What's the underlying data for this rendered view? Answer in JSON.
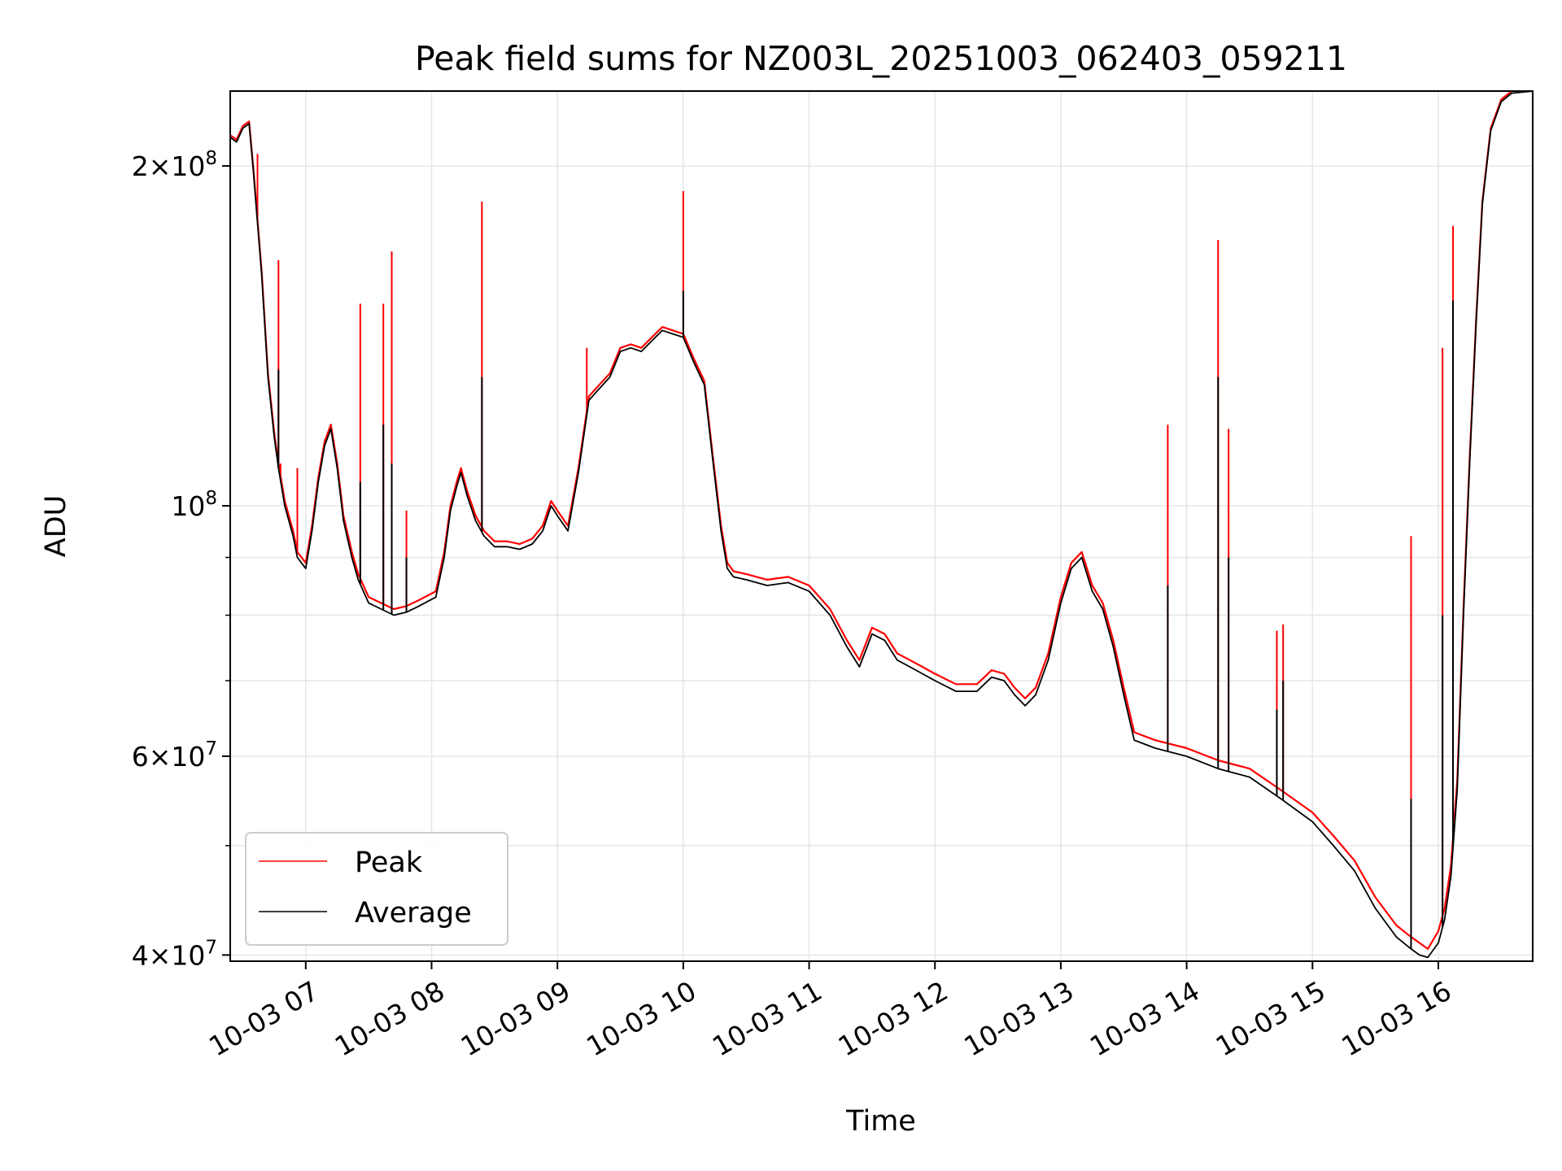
{
  "chart_data": {
    "type": "line",
    "title": "Peak field sums for NZ003L_20251003_062403_059211",
    "xlabel": "Time",
    "ylabel": "ADU",
    "xlim": [
      "2025-10-03T06:24",
      "2025-10-03T16:45"
    ],
    "ylim": [
      39500000,
      233000000
    ],
    "yscale": "log",
    "grid": true,
    "legend_position": "lower-left",
    "x_tick_labels": [
      "10-03 07",
      "10-03 08",
      "10-03 09",
      "10-03 10",
      "10-03 11",
      "10-03 12",
      "10-03 13",
      "10-03 14",
      "10-03 15",
      "10-03 16"
    ],
    "x_tick_values": [
      "2025-10-03T07:00",
      "2025-10-03T08:00",
      "2025-10-03T09:00",
      "2025-10-03T10:00",
      "2025-10-03T11:00",
      "2025-10-03T12:00",
      "2025-10-03T13:00",
      "2025-10-03T14:00",
      "2025-10-03T15:00",
      "2025-10-03T16:00"
    ],
    "y_major_ticks": [
      {
        "value": 40000000,
        "mantissa": "4",
        "exponent": "7"
      },
      {
        "value": 60000000,
        "mantissa": "6",
        "exponent": "7"
      },
      {
        "value": 100000000,
        "mantissa": "",
        "exponent": "8"
      },
      {
        "value": 200000000,
        "mantissa": "2",
        "exponent": "8"
      }
    ],
    "y_minor_grid": [
      50000000,
      70000000,
      80000000,
      90000000
    ],
    "series": [
      {
        "name": "Average",
        "color": "#000000",
        "x": [
          "2025-10-03T06:24",
          "2025-10-03T06:27",
          "2025-10-03T06:30",
          "2025-10-03T06:33",
          "2025-10-03T06:35",
          "2025-10-03T06:39",
          "2025-10-03T06:42",
          "2025-10-03T06:45",
          "2025-10-03T06:47",
          "2025-10-03T06:50",
          "2025-10-03T06:54",
          "2025-10-03T06:56",
          "2025-10-03T07:00",
          "2025-10-03T07:03",
          "2025-10-03T07:06",
          "2025-10-03T07:09",
          "2025-10-03T07:12",
          "2025-10-03T07:15",
          "2025-10-03T07:18",
          "2025-10-03T07:22",
          "2025-10-03T07:25",
          "2025-10-03T07:30",
          "2025-10-03T07:36",
          "2025-10-03T07:42",
          "2025-10-03T07:48",
          "2025-10-03T07:54",
          "2025-10-03T08:02",
          "2025-10-03T08:06",
          "2025-10-03T08:09",
          "2025-10-03T08:12",
          "2025-10-03T08:14",
          "2025-10-03T08:17",
          "2025-10-03T08:21",
          "2025-10-03T08:25",
          "2025-10-03T08:30",
          "2025-10-03T08:36",
          "2025-10-03T08:42",
          "2025-10-03T08:48",
          "2025-10-03T08:53",
          "2025-10-03T08:57",
          "2025-10-03T09:00",
          "2025-10-03T09:05",
          "2025-10-03T09:10",
          "2025-10-03T09:15",
          "2025-10-03T09:20",
          "2025-10-03T09:25",
          "2025-10-03T09:30",
          "2025-10-03T09:35",
          "2025-10-03T09:40",
          "2025-10-03T09:45",
          "2025-10-03T09:50",
          "2025-10-03T09:55",
          "2025-10-03T10:00",
          "2025-10-03T10:05",
          "2025-10-03T10:10",
          "2025-10-03T10:14",
          "2025-10-03T10:18",
          "2025-10-03T10:21",
          "2025-10-03T10:24",
          "2025-10-03T10:30",
          "2025-10-03T10:40",
          "2025-10-03T10:50",
          "2025-10-03T11:00",
          "2025-10-03T11:10",
          "2025-10-03T11:18",
          "2025-10-03T11:24",
          "2025-10-03T11:30",
          "2025-10-03T11:36",
          "2025-10-03T11:42",
          "2025-10-03T11:48",
          "2025-10-03T11:54",
          "2025-10-03T12:00",
          "2025-10-03T12:10",
          "2025-10-03T12:20",
          "2025-10-03T12:27",
          "2025-10-03T12:33",
          "2025-10-03T12:38",
          "2025-10-03T12:43",
          "2025-10-03T12:48",
          "2025-10-03T12:54",
          "2025-10-03T13:00",
          "2025-10-03T13:05",
          "2025-10-03T13:10",
          "2025-10-03T13:15",
          "2025-10-03T13:20",
          "2025-10-03T13:25",
          "2025-10-03T13:30",
          "2025-10-03T13:35",
          "2025-10-03T13:45",
          "2025-10-03T14:00",
          "2025-10-03T14:15",
          "2025-10-03T14:30",
          "2025-10-03T14:45",
          "2025-10-03T15:00",
          "2025-10-03T15:10",
          "2025-10-03T15:20",
          "2025-10-03T15:30",
          "2025-10-03T15:40",
          "2025-10-03T15:47",
          "2025-10-03T15:51",
          "2025-10-03T15:55",
          "2025-10-03T16:00",
          "2025-10-03T16:03",
          "2025-10-03T16:06",
          "2025-10-03T16:09",
          "2025-10-03T16:12",
          "2025-10-03T16:15",
          "2025-10-03T16:18",
          "2025-10-03T16:21",
          "2025-10-03T16:25",
          "2025-10-03T16:30",
          "2025-10-03T16:35",
          "2025-10-03T16:45"
        ],
        "values": [
          212000000,
          210000000,
          216000000,
          218000000,
          198000000,
          160000000,
          130000000,
          115000000,
          108000000,
          100000000,
          94000000,
          90000000,
          88000000,
          95000000,
          105000000,
          113000000,
          117000000,
          108000000,
          97000000,
          90000000,
          86000000,
          82000000,
          81000000,
          80000000,
          80500000,
          81500000,
          83000000,
          90000000,
          99000000,
          104000000,
          107000000,
          102000000,
          97000000,
          94000000,
          92000000,
          92000000,
          91500000,
          92500000,
          95000000,
          100000000,
          98000000,
          95000000,
          107000000,
          124000000,
          127000000,
          130000000,
          137000000,
          138000000,
          137000000,
          140000000,
          143000000,
          142000000,
          141000000,
          134000000,
          128000000,
          110000000,
          95000000,
          88000000,
          86500000,
          86000000,
          85000000,
          85500000,
          84000000,
          80000000,
          75000000,
          72000000,
          77000000,
          76000000,
          73000000,
          72000000,
          71000000,
          70000000,
          68500000,
          68500000,
          70500000,
          70000000,
          68000000,
          66500000,
          68000000,
          73000000,
          82000000,
          88000000,
          90000000,
          84000000,
          81000000,
          75000000,
          68000000,
          62000000,
          61000000,
          60000000,
          58500000,
          57500000,
          55000000,
          52500000,
          50000000,
          47500000,
          44000000,
          41500000,
          40500000,
          40000000,
          39800000,
          41000000,
          43000000,
          47000000,
          56000000,
          80000000,
          110000000,
          145000000,
          185000000,
          215000000,
          228000000,
          232000000,
          233000000
        ],
        "spikes": [
          {
            "x": "2025-10-03T06:47",
            "value": 132000000
          },
          {
            "x": "2025-10-03T07:26",
            "value": 105000000
          },
          {
            "x": "2025-10-03T07:37",
            "value": 118000000
          },
          {
            "x": "2025-10-03T07:41",
            "value": 109000000
          },
          {
            "x": "2025-10-03T07:48",
            "value": 90000000
          },
          {
            "x": "2025-10-03T08:24",
            "value": 130000000
          },
          {
            "x": "2025-10-03T10:00",
            "value": 155000000
          },
          {
            "x": "2025-10-03T13:51",
            "value": 85000000
          },
          {
            "x": "2025-10-03T14:15",
            "value": 130000000
          },
          {
            "x": "2025-10-03T14:20",
            "value": 90000000
          },
          {
            "x": "2025-10-03T14:43",
            "value": 66000000
          },
          {
            "x": "2025-10-03T14:46",
            "value": 70000000
          },
          {
            "x": "2025-10-03T15:47",
            "value": 55000000
          },
          {
            "x": "2025-10-03T16:02",
            "value": 80000000
          },
          {
            "x": "2025-10-03T16:07",
            "value": 152000000
          }
        ]
      },
      {
        "name": "Peak",
        "color": "#ff0000",
        "x": [
          "2025-10-03T06:24",
          "2025-10-03T06:27",
          "2025-10-03T06:30",
          "2025-10-03T06:33",
          "2025-10-03T06:35",
          "2025-10-03T06:39",
          "2025-10-03T06:42",
          "2025-10-03T06:45",
          "2025-10-03T06:47",
          "2025-10-03T06:50",
          "2025-10-03T06:54",
          "2025-10-03T06:56",
          "2025-10-03T07:00",
          "2025-10-03T07:03",
          "2025-10-03T07:06",
          "2025-10-03T07:09",
          "2025-10-03T07:12",
          "2025-10-03T07:15",
          "2025-10-03T07:18",
          "2025-10-03T07:22",
          "2025-10-03T07:25",
          "2025-10-03T07:30",
          "2025-10-03T07:36",
          "2025-10-03T07:42",
          "2025-10-03T07:48",
          "2025-10-03T07:54",
          "2025-10-03T08:02",
          "2025-10-03T08:06",
          "2025-10-03T08:09",
          "2025-10-03T08:12",
          "2025-10-03T08:14",
          "2025-10-03T08:17",
          "2025-10-03T08:21",
          "2025-10-03T08:25",
          "2025-10-03T08:30",
          "2025-10-03T08:36",
          "2025-10-03T08:42",
          "2025-10-03T08:48",
          "2025-10-03T08:53",
          "2025-10-03T08:57",
          "2025-10-03T09:00",
          "2025-10-03T09:05",
          "2025-10-03T09:10",
          "2025-10-03T09:15",
          "2025-10-03T09:20",
          "2025-10-03T09:25",
          "2025-10-03T09:30",
          "2025-10-03T09:35",
          "2025-10-03T09:40",
          "2025-10-03T09:45",
          "2025-10-03T09:50",
          "2025-10-03T09:55",
          "2025-10-03T10:00",
          "2025-10-03T10:05",
          "2025-10-03T10:10",
          "2025-10-03T10:14",
          "2025-10-03T10:18",
          "2025-10-03T10:21",
          "2025-10-03T10:24",
          "2025-10-03T10:30",
          "2025-10-03T10:40",
          "2025-10-03T10:50",
          "2025-10-03T11:00",
          "2025-10-03T11:10",
          "2025-10-03T11:18",
          "2025-10-03T11:24",
          "2025-10-03T11:30",
          "2025-10-03T11:36",
          "2025-10-03T11:42",
          "2025-10-03T11:48",
          "2025-10-03T11:54",
          "2025-10-03T12:00",
          "2025-10-03T12:10",
          "2025-10-03T12:20",
          "2025-10-03T12:27",
          "2025-10-03T12:33",
          "2025-10-03T12:38",
          "2025-10-03T12:43",
          "2025-10-03T12:48",
          "2025-10-03T12:54",
          "2025-10-03T13:00",
          "2025-10-03T13:05",
          "2025-10-03T13:10",
          "2025-10-03T13:15",
          "2025-10-03T13:20",
          "2025-10-03T13:25",
          "2025-10-03T13:30",
          "2025-10-03T13:35",
          "2025-10-03T13:45",
          "2025-10-03T14:00",
          "2025-10-03T14:15",
          "2025-10-03T14:30",
          "2025-10-03T14:45",
          "2025-10-03T15:00",
          "2025-10-03T15:10",
          "2025-10-03T15:20",
          "2025-10-03T15:30",
          "2025-10-03T15:40",
          "2025-10-03T15:47",
          "2025-10-03T15:51",
          "2025-10-03T15:55",
          "2025-10-03T16:00",
          "2025-10-03T16:03",
          "2025-10-03T16:06",
          "2025-10-03T16:09",
          "2025-10-03T16:12",
          "2025-10-03T16:15",
          "2025-10-03T16:18",
          "2025-10-03T16:21",
          "2025-10-03T16:25",
          "2025-10-03T16:30",
          "2025-10-03T16:35",
          "2025-10-03T16:45"
        ],
        "values": [
          213000000,
          211000000,
          217000000,
          219000000,
          199000000,
          161000000,
          131000000,
          116000000,
          109000000,
          101000000,
          95000000,
          91000000,
          89000000,
          96000000,
          106000000,
          114000000,
          118000000,
          109000000,
          98000000,
          91000000,
          87000000,
          83000000,
          82000000,
          81000000,
          81500000,
          82500000,
          84000000,
          91000000,
          100000000,
          105000000,
          108000000,
          103000000,
          98000000,
          95000000,
          93000000,
          93000000,
          92500000,
          93500000,
          96000000,
          101000000,
          99000000,
          96000000,
          108000000,
          125000000,
          128000000,
          131000000,
          138000000,
          139000000,
          138000000,
          141000000,
          144000000,
          143000000,
          142000000,
          135000000,
          129000000,
          111000000,
          96000000,
          89000000,
          87500000,
          87000000,
          86000000,
          86500000,
          85000000,
          81000000,
          76000000,
          73000000,
          78000000,
          77000000,
          74000000,
          73000000,
          72000000,
          71000000,
          69500000,
          69500000,
          71500000,
          71000000,
          69000000,
          67500000,
          69000000,
          74000000,
          83000000,
          89000000,
          91000000,
          85000000,
          82000000,
          76000000,
          69000000,
          63000000,
          62000000,
          61000000,
          59500000,
          58500000,
          56000000,
          53500000,
          51000000,
          48500000,
          45000000,
          42500000,
          41500000,
          41000000,
          40500000,
          42000000,
          44000000,
          48000000,
          57000000,
          81000000,
          111000000,
          146000000,
          186000000,
          216000000,
          229000000,
          233000000,
          233000000
        ],
        "spikes": [
          {
            "x": "2025-10-03T06:37",
            "value": 205000000
          },
          {
            "x": "2025-10-03T06:47",
            "value": 165000000
          },
          {
            "x": "2025-10-03T06:48",
            "value": 109000000
          },
          {
            "x": "2025-10-03T06:56",
            "value": 108000000
          },
          {
            "x": "2025-10-03T07:26",
            "value": 151000000
          },
          {
            "x": "2025-10-03T07:37",
            "value": 151000000
          },
          {
            "x": "2025-10-03T07:41",
            "value": 168000000
          },
          {
            "x": "2025-10-03T07:48",
            "value": 99000000
          },
          {
            "x": "2025-10-03T08:24",
            "value": 186000000
          },
          {
            "x": "2025-10-03T09:14",
            "value": 138000000
          },
          {
            "x": "2025-10-03T10:00",
            "value": 190000000
          },
          {
            "x": "2025-10-03T13:51",
            "value": 118000000
          },
          {
            "x": "2025-10-03T14:15",
            "value": 172000000
          },
          {
            "x": "2025-10-03T14:20",
            "value": 117000000
          },
          {
            "x": "2025-10-03T14:43",
            "value": 77500000
          },
          {
            "x": "2025-10-03T14:46",
            "value": 78500000
          },
          {
            "x": "2025-10-03T15:47",
            "value": 94000000
          },
          {
            "x": "2025-10-03T16:02",
            "value": 138000000
          },
          {
            "x": "2025-10-03T16:07",
            "value": 177000000
          }
        ]
      }
    ],
    "legend": [
      {
        "label": "Peak",
        "color": "#ff0000"
      },
      {
        "label": "Average",
        "color": "#000000"
      }
    ]
  }
}
